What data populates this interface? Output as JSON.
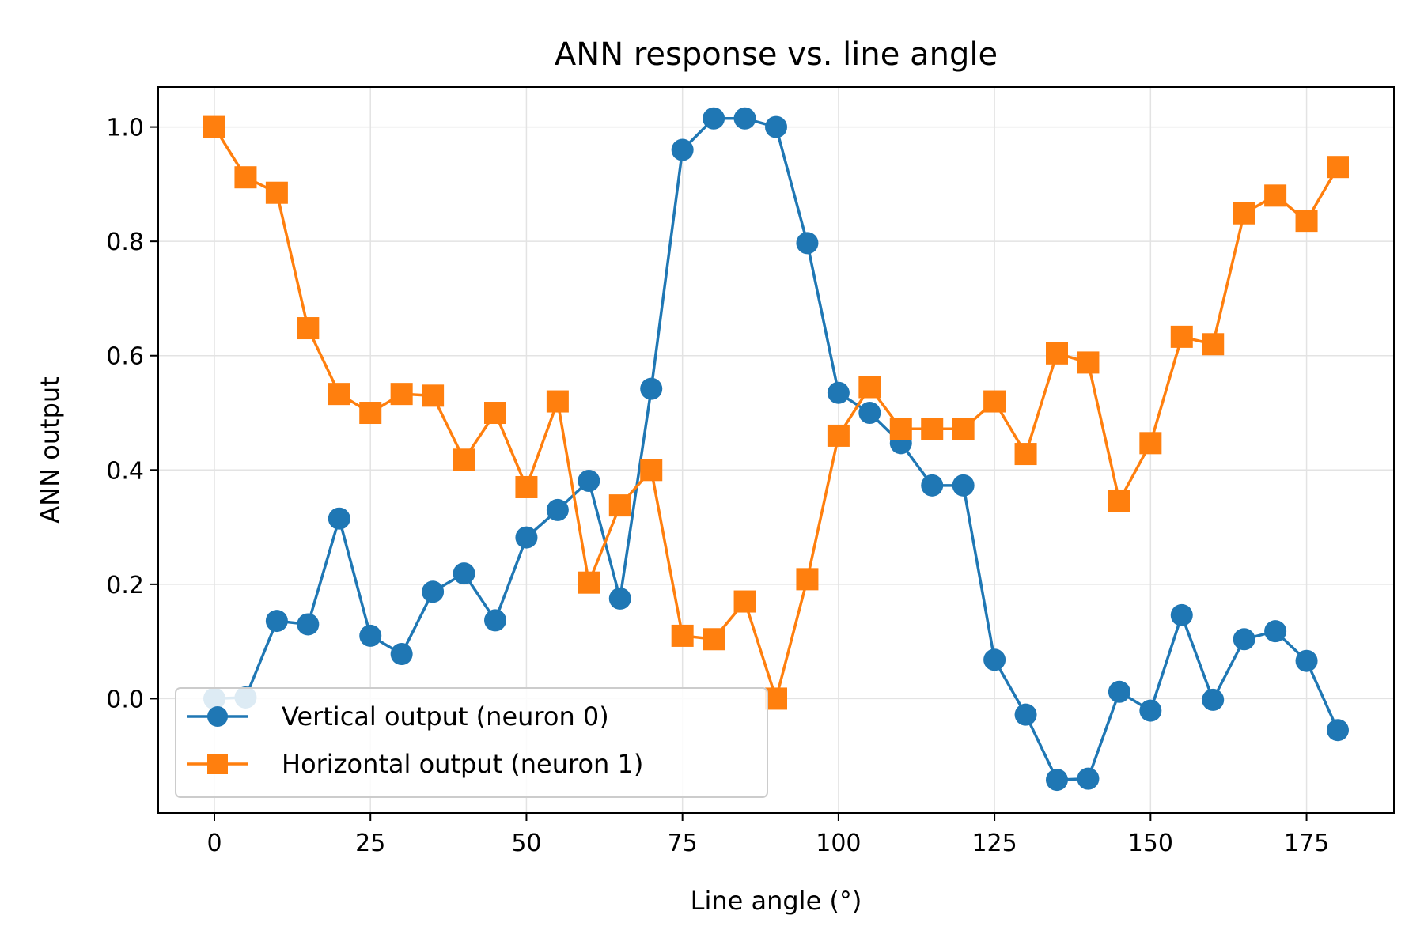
{
  "chart_data": {
    "type": "line",
    "title": "ANN response vs. line angle",
    "xlabel": "Line angle (°)",
    "ylabel": "ANN output",
    "xlim": [
      -9,
      189
    ],
    "ylim": [
      -0.2,
      1.07
    ],
    "xticks": [
      0,
      25,
      50,
      75,
      100,
      125,
      150,
      175
    ],
    "yticks": [
      0.0,
      0.2,
      0.4,
      0.6,
      0.8,
      1.0
    ],
    "xtick_labels": [
      "0",
      "25",
      "50",
      "75",
      "100",
      "125",
      "150",
      "175"
    ],
    "ytick_labels": [
      "0.0",
      "0.2",
      "0.4",
      "0.6",
      "0.8",
      "1.0"
    ],
    "grid": true,
    "legend_position": "lower-left",
    "x": [
      0,
      5,
      10,
      15,
      20,
      25,
      30,
      35,
      40,
      45,
      50,
      55,
      60,
      65,
      70,
      75,
      80,
      85,
      90,
      95,
      100,
      105,
      110,
      115,
      120,
      125,
      130,
      135,
      140,
      145,
      150,
      155,
      160,
      165,
      170,
      175,
      180
    ],
    "series": [
      {
        "name": "Vertical output (neuron 0)",
        "color": "#1f77b4",
        "marker": "circle",
        "values": [
          0.0,
          0.002,
          0.136,
          0.13,
          0.315,
          0.11,
          0.078,
          0.187,
          0.219,
          0.137,
          0.282,
          0.33,
          0.381,
          0.175,
          0.542,
          0.96,
          1.015,
          1.015,
          1.0,
          0.797,
          0.535,
          0.5,
          0.447,
          0.373,
          0.373,
          0.068,
          -0.028,
          -0.142,
          -0.14,
          0.012,
          -0.021,
          0.146,
          -0.002,
          0.104,
          0.118,
          0.066,
          -0.055
        ]
      },
      {
        "name": "Horizontal output (neuron 1)",
        "color": "#ff7f0e",
        "marker": "square",
        "values": [
          1.0,
          0.912,
          0.885,
          0.648,
          0.533,
          0.5,
          0.533,
          0.53,
          0.418,
          0.5,
          0.37,
          0.52,
          0.203,
          0.338,
          0.4,
          0.11,
          0.104,
          0.17,
          0.0,
          0.209,
          0.46,
          0.545,
          0.472,
          0.472,
          0.472,
          0.52,
          0.428,
          0.604,
          0.588,
          0.346,
          0.447,
          0.633,
          0.62,
          0.849,
          0.88,
          0.836,
          0.93
        ]
      }
    ]
  }
}
